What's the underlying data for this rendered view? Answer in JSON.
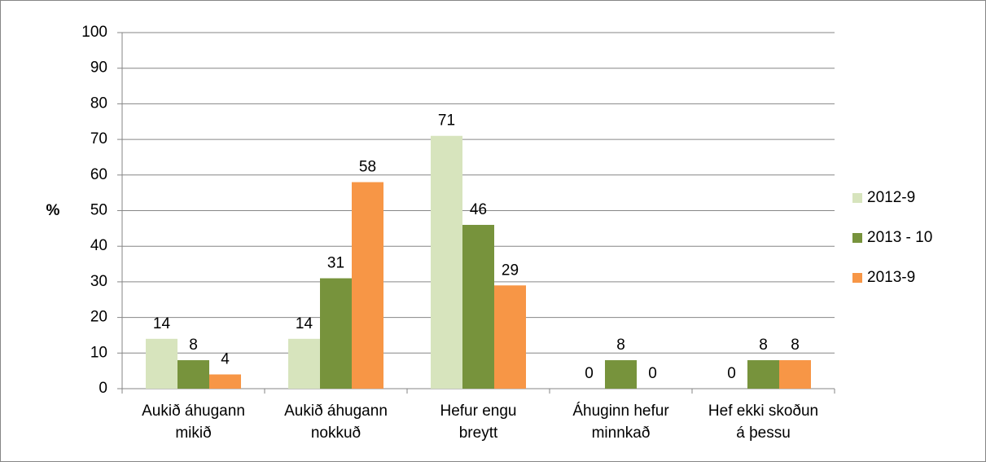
{
  "chart_data": {
    "type": "bar",
    "categories": [
      [
        "Aukið áhugann",
        "mikið"
      ],
      [
        "Aukið áhugann",
        "nokkuð"
      ],
      [
        "Hefur engu",
        "breytt"
      ],
      [
        "Áhuginn hefur",
        "minnkað"
      ],
      [
        "Hef ekki skoðun",
        "á þessu"
      ]
    ],
    "series": [
      {
        "name": "2012-9",
        "color": "#d7e4bd",
        "values": [
          14,
          14,
          71,
          0,
          0
        ]
      },
      {
        "name": "2013 - 10",
        "color": "#77933c",
        "values": [
          8,
          31,
          46,
          8,
          8
        ]
      },
      {
        "name": "2013-9",
        "color": "#f79646",
        "values": [
          4,
          58,
          29,
          0,
          8
        ]
      }
    ],
    "ylabel": "%",
    "ylim": [
      0,
      100
    ],
    "yticks": [
      0,
      10,
      20,
      30,
      40,
      50,
      60,
      70,
      80,
      90,
      100
    ],
    "grid": true,
    "legend": "right"
  }
}
